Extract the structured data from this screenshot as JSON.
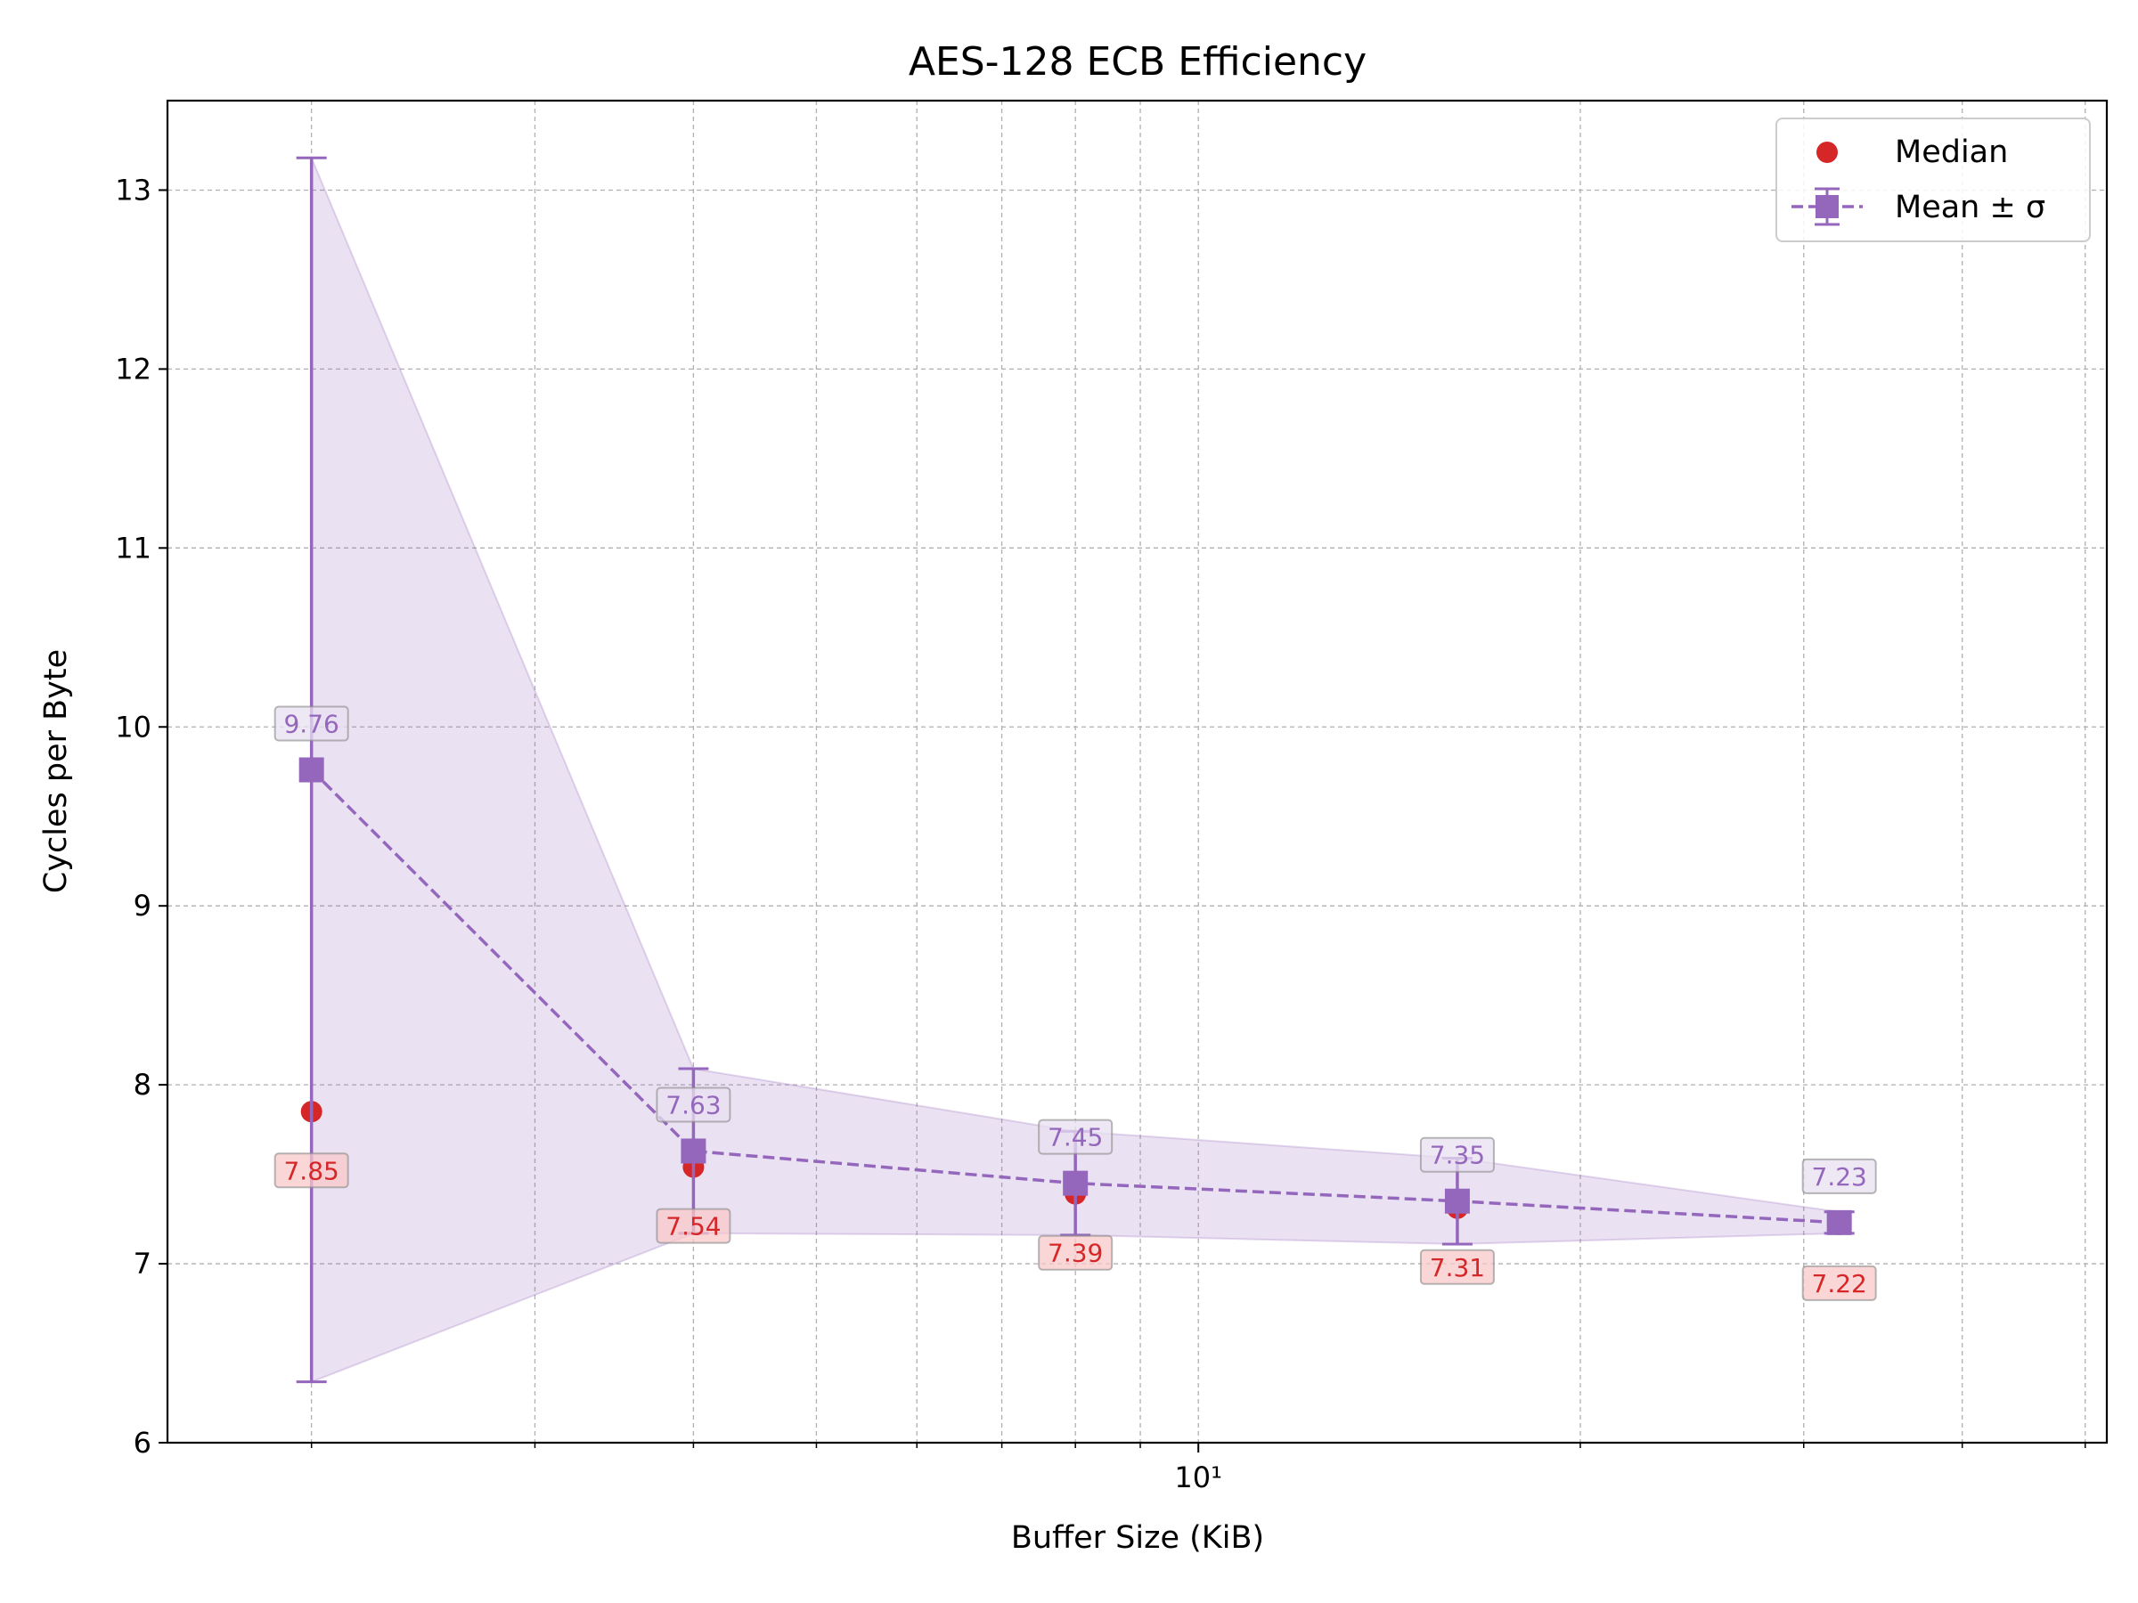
{
  "chart_data": {
    "type": "scatter",
    "title": "AES-128 ECB Efficiency",
    "xlabel": "Buffer Size (KiB)",
    "ylabel": "Cycles per Byte",
    "x_scale": "log",
    "xlim": [
      1.54,
      52
    ],
    "ylim": [
      6,
      13.5
    ],
    "x": [
      2,
      4,
      8,
      16,
      32
    ],
    "x_tick_values": [
      10
    ],
    "x_tick_labels": [
      "10¹"
    ],
    "x_minor_ticks": [
      2,
      3,
      4,
      5,
      6,
      7,
      8,
      9,
      20,
      30,
      40,
      50
    ],
    "y_ticks": [
      6,
      7,
      8,
      9,
      10,
      11,
      12,
      13
    ],
    "y_tick_labels": [
      "6",
      "7",
      "8",
      "9",
      "10",
      "11",
      "12",
      "13"
    ],
    "grid": true,
    "legend_position": "top-right",
    "series": [
      {
        "name": "Median",
        "kind": "scatter",
        "color": "#d62728",
        "values": [
          7.85,
          7.54,
          7.39,
          7.31,
          7.22
        ],
        "labels": [
          "7.85",
          "7.54",
          "7.39",
          "7.31",
          "7.22"
        ]
      },
      {
        "name": "Mean ± σ",
        "kind": "errorbar-line",
        "color": "#9467bd",
        "values": [
          9.76,
          7.63,
          7.45,
          7.35,
          7.23
        ],
        "std": [
          3.42,
          0.46,
          0.29,
          0.24,
          0.06
        ],
        "labels": [
          "9.76",
          "7.63",
          "7.45",
          "7.35",
          "7.23"
        ]
      }
    ]
  }
}
